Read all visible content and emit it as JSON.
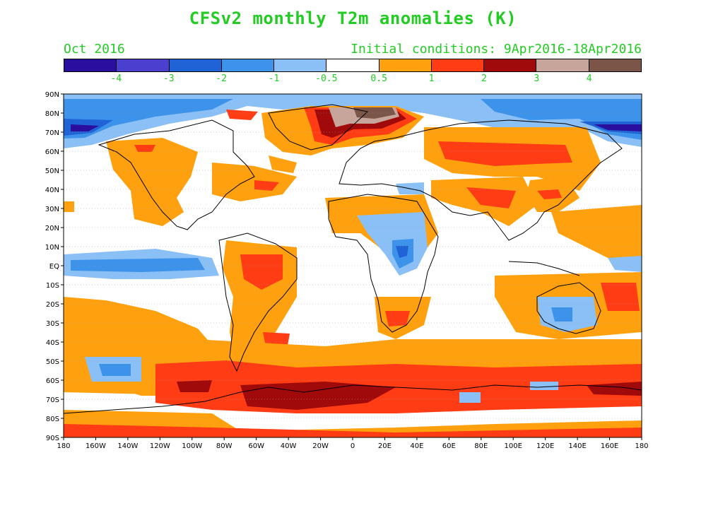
{
  "title": "CFSv2 monthly T2m anomalies (K)",
  "valid_month": "Oct 2016",
  "initial_conditions": "Initial conditions: 9Apr2016-18Apr2016",
  "colorbar": {
    "colors": [
      "#2a0f9e",
      "#4a3fcf",
      "#1f63d6",
      "#3d93ea",
      "#8ac0f5",
      "#ffffff",
      "#ffa10f",
      "#ff3c14",
      "#a00a0a",
      "#c8a59b",
      "#7b5548"
    ],
    "labels": [
      "-4",
      "-3",
      "-2",
      "-1",
      "-0.5",
      "0.5",
      "1",
      "2",
      "3",
      "4"
    ]
  },
  "axes": {
    "lat_labels": [
      "90N",
      "80N",
      "70N",
      "60N",
      "50N",
      "40N",
      "30N",
      "20N",
      "10N",
      "EQ",
      "10S",
      "20S",
      "30S",
      "40S",
      "50S",
      "60S",
      "70S",
      "80S",
      "90S"
    ],
    "lon_labels": [
      "180",
      "160W",
      "140W",
      "120W",
      "100W",
      "80W",
      "60W",
      "40W",
      "20W",
      "0",
      "20E",
      "40E",
      "60E",
      "80E",
      "100E",
      "120E",
      "140E",
      "160E",
      "180"
    ]
  }
}
